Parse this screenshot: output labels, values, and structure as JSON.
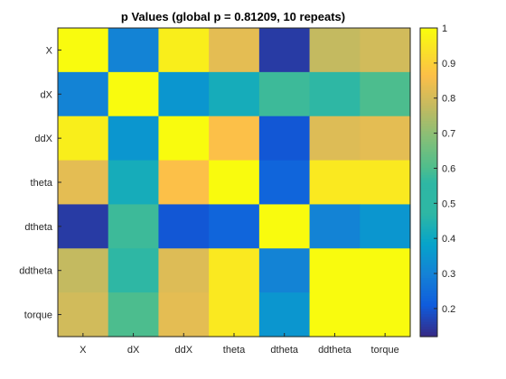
{
  "chart_data": {
    "type": "heatmap",
    "title": "p Values (global p = 0.81209, 10 repeats)",
    "xlabel": "",
    "ylabel": "",
    "x_categories": [
      "X",
      "dX",
      "ddX",
      "theta",
      "dtheta",
      "ddtheta",
      "torque"
    ],
    "y_categories": [
      "X",
      "dX",
      "ddX",
      "theta",
      "dtheta",
      "ddtheta",
      "torque"
    ],
    "values": [
      [
        1.0,
        0.3,
        0.97,
        0.83,
        0.15,
        0.78,
        0.8
      ],
      [
        0.3,
        1.0,
        0.35,
        0.42,
        0.58,
        0.55,
        0.6
      ],
      [
        0.97,
        0.35,
        1.0,
        0.87,
        0.2,
        0.82,
        0.83
      ],
      [
        0.83,
        0.42,
        0.87,
        1.0,
        0.23,
        0.96,
        0.96
      ],
      [
        0.15,
        0.58,
        0.2,
        0.23,
        1.0,
        0.3,
        0.35
      ],
      [
        0.78,
        0.55,
        0.82,
        0.96,
        0.3,
        1.0,
        1.0
      ],
      [
        0.8,
        0.6,
        0.83,
        0.96,
        0.35,
        1.0,
        1.0
      ]
    ],
    "colormap": "parula",
    "colorbar": {
      "range": [
        0.12,
        1.0
      ],
      "ticks": [
        0.2,
        0.3,
        0.4,
        0.5,
        0.6,
        0.7,
        0.8,
        0.9,
        1
      ],
      "tick_labels": [
        "0.2",
        "0.3",
        "0.4",
        "0.5",
        "0.6",
        "0.7",
        "0.8",
        "0.9",
        "1"
      ],
      "location": "right"
    },
    "grid": false
  },
  "colors": {
    "axis_line": "#262626",
    "background": "#ffffff"
  }
}
